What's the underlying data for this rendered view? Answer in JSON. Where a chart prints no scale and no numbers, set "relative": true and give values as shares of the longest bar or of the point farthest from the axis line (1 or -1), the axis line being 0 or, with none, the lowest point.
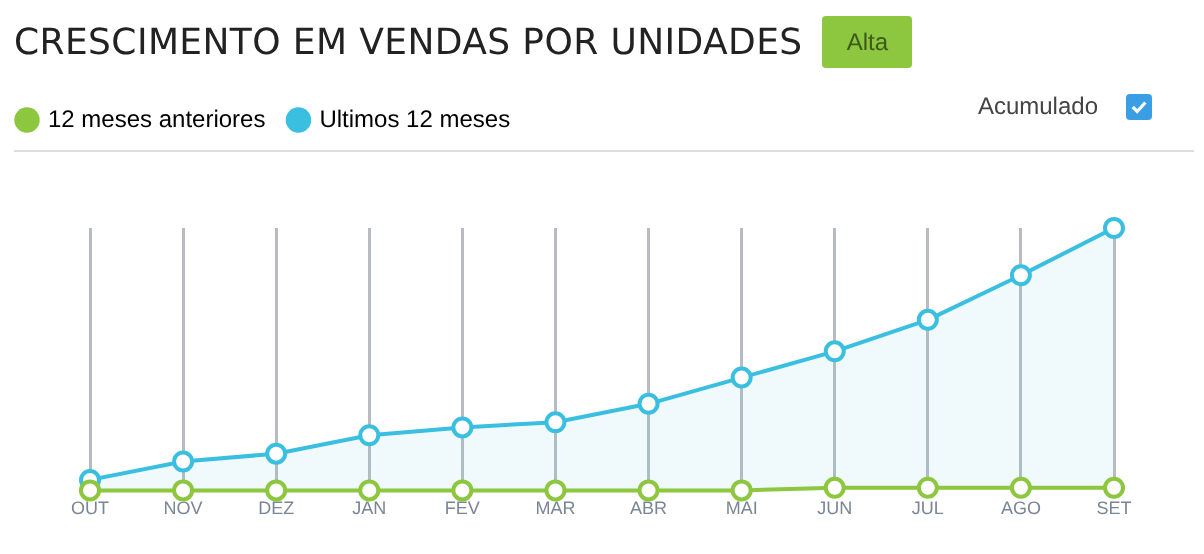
{
  "chart_data": {
    "type": "line",
    "title": "CRESCIMENTO EM VENDAS POR UNIDADES",
    "annotations": [
      "Alta",
      "Acumulado"
    ],
    "categories": [
      "OUT",
      "NOV",
      "DEZ",
      "JAN",
      "FEV",
      "MAR",
      "ABR",
      "MAI",
      "JUN",
      "JUL",
      "AGO",
      "SET"
    ],
    "series": [
      {
        "name": "12 meses anteriores",
        "type": "line",
        "color": "#8dc63f",
        "values": [
          0,
          0,
          0,
          0,
          0,
          0,
          0,
          0,
          0.01,
          0.01,
          0.01,
          0.01
        ]
      },
      {
        "name": "Ultimos 12 meses",
        "type": "area",
        "color": "#3bbfe0",
        "values": [
          0.04,
          0.11,
          0.14,
          0.21,
          0.24,
          0.26,
          0.33,
          0.43,
          0.53,
          0.65,
          0.82,
          1
        ]
      }
    ],
    "relative": true,
    "grid": "x",
    "legend": "top left",
    "marker": "circle"
  }
}
